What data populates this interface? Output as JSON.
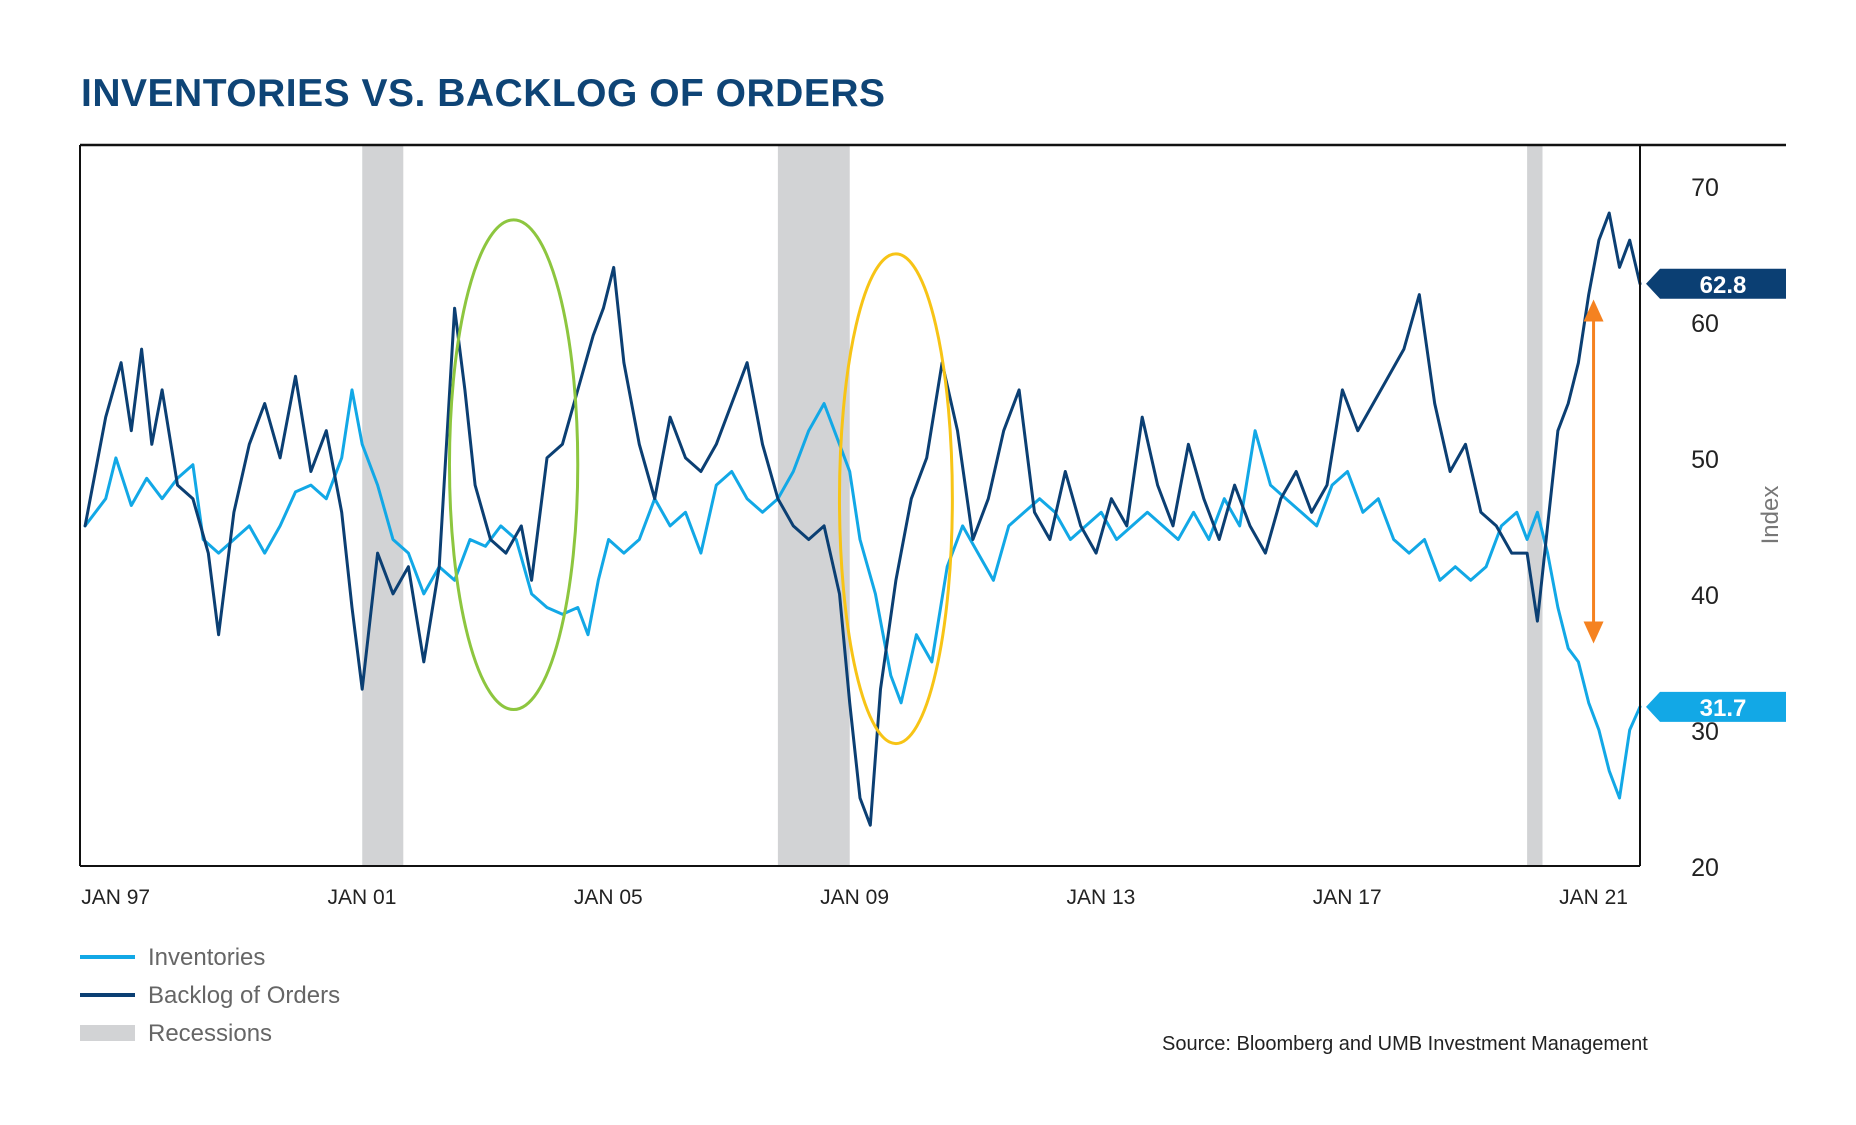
{
  "title": "INVENTORIES VS. BACKLOG OF ORDERS",
  "source": "Source: Bloomberg and UMB Investment Management",
  "colors": {
    "inventories": "#12a8e6",
    "backlog": "#0b3f73",
    "recessions": "#d2d3d5",
    "green_highlight": "#8dc63f",
    "yellow_highlight": "#f7c416",
    "arrow": "#f58220",
    "title": "#0e4476"
  },
  "chart_data": {
    "type": "line",
    "title": "INVENTORIES VS. BACKLOG OF ORDERS",
    "xlabel": "",
    "ylabel": "Index",
    "ylim": [
      20,
      73
    ],
    "y_ticks": [
      20,
      30,
      40,
      50,
      60,
      70
    ],
    "x_ticks": [
      {
        "date": "1997-01",
        "label": "JAN 97"
      },
      {
        "date": "2001-01",
        "label": "JAN 01"
      },
      {
        "date": "2005-01",
        "label": "JAN 05"
      },
      {
        "date": "2009-01",
        "label": "JAN 09"
      },
      {
        "date": "2013-01",
        "label": "JAN 13"
      },
      {
        "date": "2017-01",
        "label": "JAN 17"
      },
      {
        "date": "2021-01",
        "label": "JAN 21"
      }
    ],
    "xrange": [
      "1996-08",
      "2021-12"
    ],
    "legend_position": "bottom-left",
    "grid": false,
    "recessions": [
      {
        "start": "2001-03",
        "end": "2001-11"
      },
      {
        "start": "2007-12",
        "end": "2009-02"
      },
      {
        "start": "2020-02",
        "end": "2020-05"
      }
    ],
    "highlights": [
      {
        "shape": "ellipse",
        "color": "green",
        "start": "2002-08",
        "end": "2004-09",
        "y_low": 31.5,
        "y_high": 67.5
      },
      {
        "shape": "ellipse",
        "color": "yellow",
        "start": "2008-12",
        "end": "2010-10",
        "y_low": 29,
        "y_high": 65
      }
    ],
    "annotations": [
      {
        "text": "62.8",
        "series": "Backlog of Orders",
        "value": 62.8
      },
      {
        "text": "31.7",
        "series": "Inventories",
        "value": 31.7
      },
      {
        "type": "double-arrow",
        "from": 61.5,
        "to": 36.5,
        "date": "2021-01"
      }
    ],
    "legend": [
      {
        "name": "Inventories",
        "kind": "line",
        "color": "#12a8e6"
      },
      {
        "name": "Backlog of Orders",
        "kind": "line",
        "color": "#0b3f73"
      },
      {
        "name": "Recessions",
        "kind": "band",
        "color": "#d2d3d5"
      }
    ],
    "series": [
      {
        "name": "Inventories",
        "points": [
          [
            "1996-09",
            45
          ],
          [
            "1997-01",
            47
          ],
          [
            "1997-03",
            50
          ],
          [
            "1997-06",
            46.5
          ],
          [
            "1997-09",
            48.5
          ],
          [
            "1997-12",
            47
          ],
          [
            "1998-03",
            48.5
          ],
          [
            "1998-06",
            49.5
          ],
          [
            "1998-08",
            44
          ],
          [
            "1998-11",
            43
          ],
          [
            "1999-02",
            44
          ],
          [
            "1999-05",
            45
          ],
          [
            "1999-08",
            43
          ],
          [
            "1999-11",
            45
          ],
          [
            "2000-02",
            47.5
          ],
          [
            "2000-05",
            48
          ],
          [
            "2000-08",
            47
          ],
          [
            "2000-11",
            50
          ],
          [
            "2001-01",
            55
          ],
          [
            "2001-03",
            51
          ],
          [
            "2001-06",
            48
          ],
          [
            "2001-09",
            44
          ],
          [
            "2001-12",
            43
          ],
          [
            "2002-03",
            40
          ],
          [
            "2002-06",
            42
          ],
          [
            "2002-09",
            41
          ],
          [
            "2002-12",
            44
          ],
          [
            "2003-03",
            43.5
          ],
          [
            "2003-06",
            45
          ],
          [
            "2003-09",
            44
          ],
          [
            "2003-12",
            40
          ],
          [
            "2004-03",
            39
          ],
          [
            "2004-06",
            38.5
          ],
          [
            "2004-09",
            39
          ],
          [
            "2004-11",
            37
          ],
          [
            "2005-01",
            41
          ],
          [
            "2005-03",
            44
          ],
          [
            "2005-06",
            43
          ],
          [
            "2005-09",
            44
          ],
          [
            "2005-12",
            47
          ],
          [
            "2006-03",
            45
          ],
          [
            "2006-06",
            46
          ],
          [
            "2006-09",
            43
          ],
          [
            "2006-12",
            48
          ],
          [
            "2007-03",
            49
          ],
          [
            "2007-06",
            47
          ],
          [
            "2007-09",
            46
          ],
          [
            "2007-12",
            47
          ],
          [
            "2008-03",
            49
          ],
          [
            "2008-06",
            52
          ],
          [
            "2008-09",
            54
          ],
          [
            "2008-12",
            51
          ],
          [
            "2009-02",
            49
          ],
          [
            "2009-04",
            44
          ],
          [
            "2009-07",
            40
          ],
          [
            "2009-10",
            34
          ],
          [
            "2009-12",
            32
          ],
          [
            "2010-03",
            37
          ],
          [
            "2010-06",
            35
          ],
          [
            "2010-09",
            42
          ],
          [
            "2010-12",
            45
          ],
          [
            "2011-03",
            43
          ],
          [
            "2011-06",
            41
          ],
          [
            "2011-09",
            45
          ],
          [
            "2011-12",
            46
          ],
          [
            "2012-03",
            47
          ],
          [
            "2012-06",
            46
          ],
          [
            "2012-09",
            44
          ],
          [
            "2012-12",
            45
          ],
          [
            "2013-03",
            46
          ],
          [
            "2013-06",
            44
          ],
          [
            "2013-09",
            45
          ],
          [
            "2013-12",
            46
          ],
          [
            "2014-03",
            45
          ],
          [
            "2014-06",
            44
          ],
          [
            "2014-09",
            46
          ],
          [
            "2014-12",
            44
          ],
          [
            "2015-03",
            47
          ],
          [
            "2015-06",
            45
          ],
          [
            "2015-09",
            52
          ],
          [
            "2015-12",
            48
          ],
          [
            "2016-03",
            47
          ],
          [
            "2016-06",
            46
          ],
          [
            "2016-09",
            45
          ],
          [
            "2016-12",
            48
          ],
          [
            "2017-03",
            49
          ],
          [
            "2017-06",
            46
          ],
          [
            "2017-09",
            47
          ],
          [
            "2017-12",
            44
          ],
          [
            "2018-03",
            43
          ],
          [
            "2018-06",
            44
          ],
          [
            "2018-09",
            41
          ],
          [
            "2018-12",
            42
          ],
          [
            "2019-03",
            41
          ],
          [
            "2019-06",
            42
          ],
          [
            "2019-09",
            45
          ],
          [
            "2019-12",
            46
          ],
          [
            "2020-02",
            44
          ],
          [
            "2020-04",
            46
          ],
          [
            "2020-06",
            43
          ],
          [
            "2020-08",
            39
          ],
          [
            "2020-10",
            36
          ],
          [
            "2020-12",
            35
          ],
          [
            "2021-02",
            32
          ],
          [
            "2021-04",
            30
          ],
          [
            "2021-06",
            27
          ],
          [
            "2021-08",
            25
          ],
          [
            "2021-10",
            30
          ],
          [
            "2021-12",
            31.7
          ]
        ]
      },
      {
        "name": "Backlog of Orders",
        "points": [
          [
            "1996-09",
            45
          ],
          [
            "1997-01",
            53
          ],
          [
            "1997-04",
            57
          ],
          [
            "1997-06",
            52
          ],
          [
            "1997-08",
            58
          ],
          [
            "1997-10",
            51
          ],
          [
            "1997-12",
            55
          ],
          [
            "1998-03",
            48
          ],
          [
            "1998-06",
            47
          ],
          [
            "1998-09",
            43
          ],
          [
            "1998-11",
            37
          ],
          [
            "1999-02",
            46
          ],
          [
            "1999-05",
            51
          ],
          [
            "1999-08",
            54
          ],
          [
            "1999-11",
            50
          ],
          [
            "2000-02",
            56
          ],
          [
            "2000-05",
            49
          ],
          [
            "2000-08",
            52
          ],
          [
            "2000-11",
            46
          ],
          [
            "2001-01",
            39
          ],
          [
            "2001-03",
            33
          ],
          [
            "2001-06",
            43
          ],
          [
            "2001-09",
            40
          ],
          [
            "2001-12",
            42
          ],
          [
            "2002-03",
            35
          ],
          [
            "2002-06",
            42
          ],
          [
            "2002-09",
            61
          ],
          [
            "2002-11",
            55
          ],
          [
            "2003-01",
            48
          ],
          [
            "2003-04",
            44
          ],
          [
            "2003-07",
            43
          ],
          [
            "2003-10",
            45
          ],
          [
            "2003-12",
            41
          ],
          [
            "2004-03",
            50
          ],
          [
            "2004-06",
            51
          ],
          [
            "2004-09",
            55
          ],
          [
            "2004-12",
            59
          ],
          [
            "2005-02",
            61
          ],
          [
            "2005-04",
            64
          ],
          [
            "2005-06",
            57
          ],
          [
            "2005-09",
            51
          ],
          [
            "2005-12",
            47
          ],
          [
            "2006-03",
            53
          ],
          [
            "2006-06",
            50
          ],
          [
            "2006-09",
            49
          ],
          [
            "2006-12",
            51
          ],
          [
            "2007-03",
            54
          ],
          [
            "2007-06",
            57
          ],
          [
            "2007-09",
            51
          ],
          [
            "2007-12",
            47
          ],
          [
            "2008-03",
            45
          ],
          [
            "2008-06",
            44
          ],
          [
            "2008-09",
            45
          ],
          [
            "2008-12",
            40
          ],
          [
            "2009-02",
            32
          ],
          [
            "2009-04",
            25
          ],
          [
            "2009-06",
            23
          ],
          [
            "2009-08",
            33
          ],
          [
            "2009-11",
            41
          ],
          [
            "2010-02",
            47
          ],
          [
            "2010-05",
            50
          ],
          [
            "2010-08",
            57
          ],
          [
            "2010-11",
            52
          ],
          [
            "2011-02",
            44
          ],
          [
            "2011-05",
            47
          ],
          [
            "2011-08",
            52
          ],
          [
            "2011-11",
            55
          ],
          [
            "2012-02",
            46
          ],
          [
            "2012-05",
            44
          ],
          [
            "2012-08",
            49
          ],
          [
            "2012-11",
            45
          ],
          [
            "2013-02",
            43
          ],
          [
            "2013-05",
            47
          ],
          [
            "2013-08",
            45
          ],
          [
            "2013-11",
            53
          ],
          [
            "2014-02",
            48
          ],
          [
            "2014-05",
            45
          ],
          [
            "2014-08",
            51
          ],
          [
            "2014-11",
            47
          ],
          [
            "2015-02",
            44
          ],
          [
            "2015-05",
            48
          ],
          [
            "2015-08",
            45
          ],
          [
            "2015-11",
            43
          ],
          [
            "2016-02",
            47
          ],
          [
            "2016-05",
            49
          ],
          [
            "2016-08",
            46
          ],
          [
            "2016-11",
            48
          ],
          [
            "2017-02",
            55
          ],
          [
            "2017-05",
            52
          ],
          [
            "2017-08",
            54
          ],
          [
            "2017-11",
            56
          ],
          [
            "2018-02",
            58
          ],
          [
            "2018-05",
            62
          ],
          [
            "2018-08",
            54
          ],
          [
            "2018-11",
            49
          ],
          [
            "2019-02",
            51
          ],
          [
            "2019-05",
            46
          ],
          [
            "2019-08",
            45
          ],
          [
            "2019-11",
            43
          ],
          [
            "2020-02",
            43
          ],
          [
            "2020-04",
            38
          ],
          [
            "2020-06",
            45
          ],
          [
            "2020-08",
            52
          ],
          [
            "2020-10",
            54
          ],
          [
            "2020-12",
            57
          ],
          [
            "2021-02",
            62
          ],
          [
            "2021-04",
            66
          ],
          [
            "2021-06",
            68
          ],
          [
            "2021-08",
            64
          ],
          [
            "2021-10",
            66
          ],
          [
            "2021-12",
            62.8
          ]
        ]
      }
    ]
  }
}
